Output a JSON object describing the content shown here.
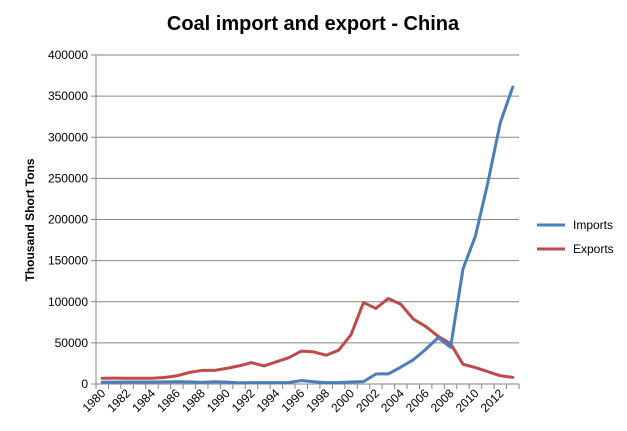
{
  "chart_data": {
    "type": "line",
    "title": "Coal import and export - China",
    "xlabel": "",
    "ylabel": "Thousand Short Tons",
    "ylim": [
      0,
      400000
    ],
    "yticks": [
      0,
      50000,
      100000,
      150000,
      200000,
      250000,
      300000,
      350000,
      400000
    ],
    "ytick_labels": [
      "0",
      "50000",
      "100000",
      "150000",
      "200000",
      "250000",
      "300000",
      "350000",
      "400000"
    ],
    "xticks": [
      1980,
      1982,
      1984,
      1986,
      1988,
      1990,
      1992,
      1994,
      1996,
      1998,
      2000,
      2002,
      2004,
      2006,
      2008,
      2010,
      2012
    ],
    "xtick_labels": [
      "1980",
      "1982",
      "1984",
      "1986",
      "1988",
      "1990",
      "1992",
      "1994",
      "1996",
      "1998",
      "2000",
      "2002",
      "2004",
      "2006",
      "2008",
      "2010",
      "2012"
    ],
    "grid": true,
    "legend_position": "right",
    "x": [
      1980,
      1981,
      1982,
      1983,
      1984,
      1985,
      1986,
      1987,
      1988,
      1989,
      1990,
      1991,
      1992,
      1993,
      1994,
      1995,
      1996,
      1997,
      1998,
      1999,
      2000,
      2001,
      2002,
      2003,
      2004,
      2005,
      2006,
      2007,
      2008,
      2009,
      2010,
      2011,
      2012,
      2013
    ],
    "series": [
      {
        "name": "Imports",
        "color": "#4a7ebb",
        "values": [
          2200,
          2300,
          2400,
          2400,
          2500,
          2600,
          2800,
          2600,
          2000,
          2700,
          2300,
          1400,
          1600,
          1700,
          1600,
          1800,
          4200,
          2800,
          1600,
          1800,
          2400,
          2900,
          12200,
          12300,
          20500,
          29400,
          42100,
          56400,
          44600,
          140000,
          180000,
          245000,
          318000,
          361000
        ]
      },
      {
        "name": "Exports",
        "color": "#be4b48",
        "values": [
          7000,
          7100,
          7000,
          7000,
          7000,
          7900,
          10000,
          14000,
          16500,
          16500,
          19000,
          22000,
          26000,
          22000,
          27000,
          32000,
          40000,
          39000,
          35000,
          41000,
          60000,
          99000,
          92000,
          104000,
          97000,
          79000,
          70000,
          58000,
          49000,
          24000,
          20000,
          15000,
          10000,
          8000
        ]
      }
    ]
  }
}
